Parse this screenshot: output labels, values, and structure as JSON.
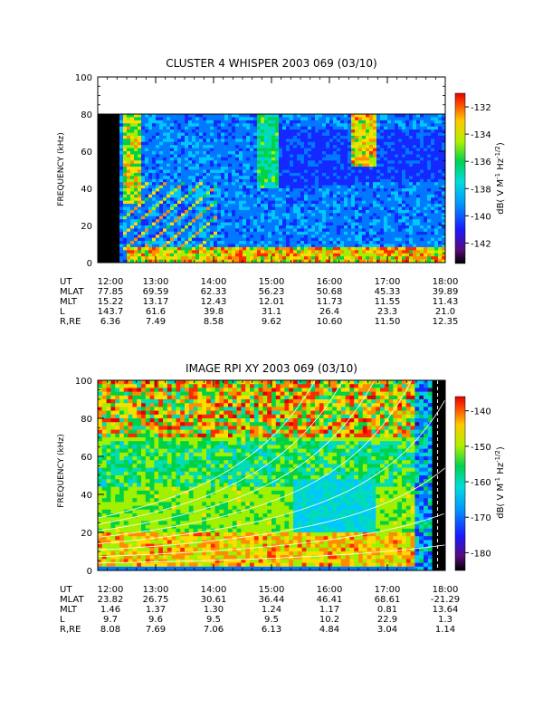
{
  "chart_data": [
    {
      "type": "heatmap",
      "title": "CLUSTER 4 WHISPER 2003 069 (03/10)",
      "ylabel": "FREQUENCY (kHz)",
      "ylim": [
        0,
        100
      ],
      "yticks": [
        "0",
        "20",
        "40",
        "60",
        "80",
        "100"
      ],
      "xticks": [
        "12:00",
        "13:00",
        "14:00",
        "15:00",
        "16:00",
        "17:00",
        "18:00"
      ],
      "colorbar": {
        "label": "dB( V M",
        "label_sup1": "-1",
        "label_mid": " Hz",
        "label_sup2": "-1/2",
        "label_end": ")",
        "range": [
          -143.5,
          -131
        ],
        "ticks": [
          "-132",
          "-134",
          "-136",
          "-138",
          "-140",
          "-142"
        ]
      },
      "ephemeris": [
        {
          "name": "UT",
          "values": [
            "12:00",
            "13:00",
            "14:00",
            "15:00",
            "16:00",
            "17:00",
            "18:00"
          ]
        },
        {
          "name": "MLAT",
          "values": [
            "77.85",
            "69.59",
            "62.33",
            "56.23",
            "50.68",
            "45.33",
            "39.89"
          ]
        },
        {
          "name": "MLT",
          "values": [
            "15.22",
            "13.17",
            "12.43",
            "12.01",
            "11.73",
            "11.55",
            "11.43"
          ]
        },
        {
          "name": "L",
          "values": [
            "143.7",
            "61.6",
            "39.8",
            "31.1",
            "26.4",
            "23.3",
            "21.0"
          ]
        },
        {
          "name": "R,RE",
          "values": [
            "6.36",
            "7.49",
            "8.58",
            "9.62",
            "10.60",
            "11.50",
            "12.35"
          ]
        }
      ]
    },
    {
      "type": "heatmap",
      "title": "IMAGE RPI XY 2003 069 (03/10)",
      "ylabel": "FREQUENCY (kHz)",
      "ylim": [
        0,
        100
      ],
      "yticks": [
        "0",
        "20",
        "40",
        "60",
        "80",
        "100"
      ],
      "xticks": [
        "12:00",
        "13:00",
        "14:00",
        "15:00",
        "16:00",
        "17:00",
        "18:00"
      ],
      "colorbar": {
        "label": "dB( V M",
        "label_sup1": "-1",
        "label_mid": " Hz",
        "label_sup2": "-1/2",
        "label_end": ")",
        "range": [
          -185,
          -136
        ],
        "ticks": [
          "-140",
          "-150",
          "-160",
          "-170",
          "-180"
        ]
      },
      "ephemeris": [
        {
          "name": "UT",
          "values": [
            "12:00",
            "13:00",
            "14:00",
            "15:00",
            "16:00",
            "17:00",
            "18:00"
          ]
        },
        {
          "name": "MLAT",
          "values": [
            "23.82",
            "26.75",
            "30.61",
            "36.44",
            "46.41",
            "68.61",
            "-21.29"
          ]
        },
        {
          "name": "MLT",
          "values": [
            "1.46",
            "1.37",
            "1.30",
            "1.24",
            "1.17",
            "0.81",
            "13.64"
          ]
        },
        {
          "name": "L",
          "values": [
            "9.7",
            "9.6",
            "9.5",
            "9.5",
            "10.2",
            "22.9",
            "1.3"
          ]
        },
        {
          "name": "R,RE",
          "values": [
            "8.08",
            "7.69",
            "7.06",
            "6.13",
            "4.84",
            "3.04",
            "1.14"
          ]
        }
      ]
    }
  ]
}
